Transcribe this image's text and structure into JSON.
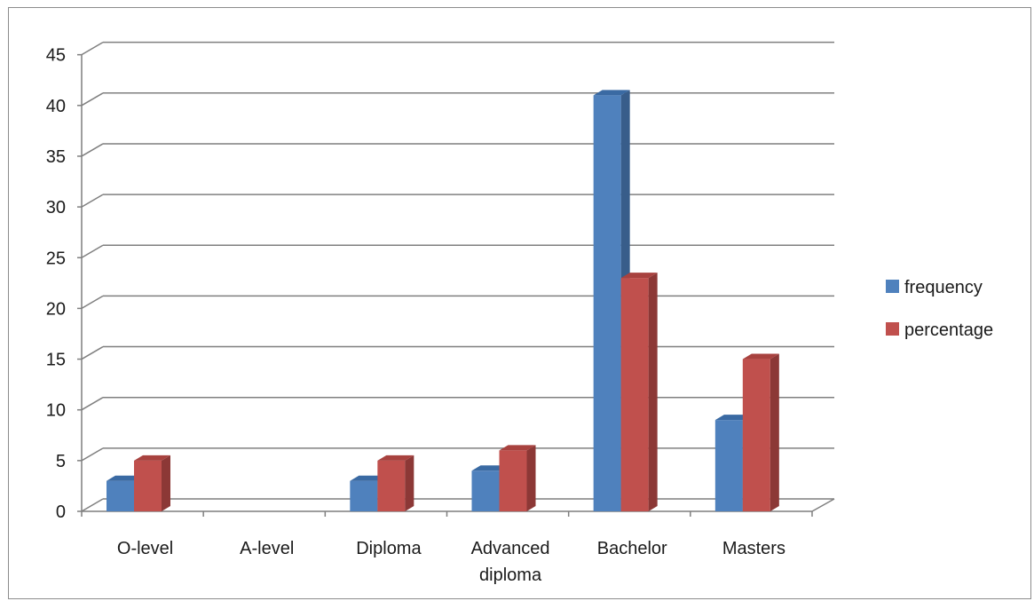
{
  "chart_data": {
    "type": "bar",
    "title": "",
    "xlabel": "",
    "ylabel": "",
    "categories": [
      "O-level",
      "A-level",
      "Diploma",
      "Advanced diploma",
      "Bachelor",
      "Masters"
    ],
    "category_label_lines": [
      [
        "O-level"
      ],
      [
        "A-level"
      ],
      [
        "Diploma"
      ],
      [
        "Advanced",
        "diploma"
      ],
      [
        "Bachelor"
      ],
      [
        "Masters"
      ]
    ],
    "series": [
      {
        "name": "frequency",
        "values": [
          3,
          0,
          3,
          4,
          41,
          9
        ],
        "color": "#4f81bd",
        "side_color": "#385d8a",
        "top_color": "#3a6aa3"
      },
      {
        "name": "percentage",
        "values": [
          5,
          0,
          5,
          6,
          23,
          15
        ],
        "color": "#c0504d",
        "side_color": "#8c3836",
        "top_color": "#a8423f"
      }
    ],
    "ylim": [
      0,
      45
    ],
    "yticks": [
      "0",
      "5",
      "10",
      "15",
      "20",
      "25",
      "30",
      "35",
      "40",
      "45"
    ],
    "grid": true,
    "style": "3d-clustered-column",
    "legend_position": "right"
  }
}
